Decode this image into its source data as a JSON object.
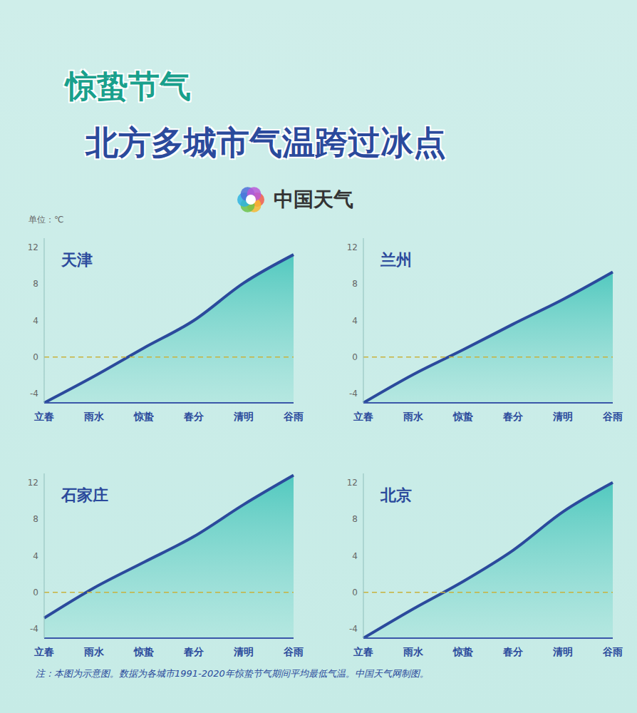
{
  "header": {
    "title": "惊蛰节气",
    "subtitle": "北方多城市气温跨过冰点",
    "brand": "中国天气"
  },
  "unit": "单位：℃",
  "note": "注：本图为示意图。数据为各城市1991-2020年惊蛰节气期间平均最低气温。中国天气网制图。",
  "chart_data": [
    {
      "type": "area",
      "title": "天津",
      "categories": [
        "立春",
        "雨水",
        "惊蛰",
        "春分",
        "清明",
        "谷雨"
      ],
      "values": [
        -5,
        -2.1,
        1,
        4,
        8.1,
        11.2
      ],
      "color": "#2b4a9c",
      "ylim": [
        -5,
        13
      ],
      "yticks": [
        -4,
        0,
        4,
        8,
        12
      ],
      "grid": false,
      "threshold": 0
    },
    {
      "type": "area",
      "title": "兰州",
      "categories": [
        "立春",
        "雨水",
        "惊蛰",
        "春分",
        "清明",
        "谷雨"
      ],
      "values": [
        -5,
        -1.9,
        0.8,
        3.6,
        6.3,
        9.3
      ],
      "color": "#2b4a9c",
      "ylim": [
        -5,
        13
      ],
      "yticks": [
        -4,
        0,
        4,
        8,
        12
      ],
      "grid": false,
      "threshold": 0
    },
    {
      "type": "area",
      "title": "石家庄",
      "categories": [
        "立春",
        "雨水",
        "惊蛰",
        "春分",
        "清明",
        "谷雨"
      ],
      "values": [
        -2.8,
        0.5,
        3.3,
        6.1,
        9.6,
        12.8
      ],
      "color": "#2b4a9c",
      "ylim": [
        -5,
        13
      ],
      "yticks": [
        -4,
        0,
        4,
        8,
        12
      ],
      "grid": false,
      "threshold": 0
    },
    {
      "type": "area",
      "title": "北京",
      "categories": [
        "立春",
        "雨水",
        "惊蛰",
        "春分",
        "清明",
        "谷雨"
      ],
      "values": [
        -5,
        -1.8,
        1.2,
        4.6,
        8.8,
        12
      ],
      "color": "#2b4a9c",
      "ylim": [
        -5,
        13
      ],
      "yticks": [
        -4,
        0,
        4,
        8,
        12
      ],
      "grid": false,
      "threshold": 0
    }
  ]
}
